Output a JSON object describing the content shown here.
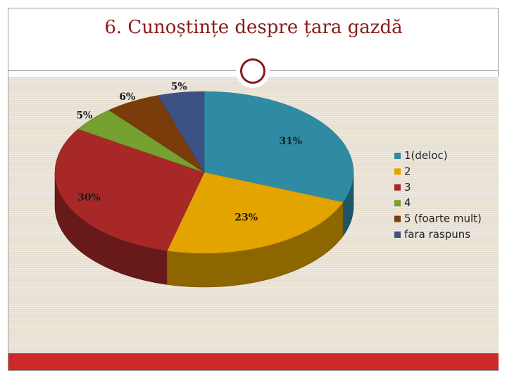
{
  "slide": {
    "title": "6. Cunoștințe despre țara gazdă",
    "colors": {
      "title": "#8b1a1a",
      "panel": "#e7dfd2",
      "footer": "#cc2a2a",
      "frame": "#9a9a9a"
    }
  },
  "chart_data": {
    "type": "pie",
    "style": "3d",
    "title": "",
    "labels": [
      "1(deloc)",
      "2",
      "3",
      "4",
      "5 (foarte mult)",
      "fara raspuns"
    ],
    "values": [
      31,
      23,
      30,
      5,
      6,
      5
    ],
    "data_labels": [
      "31%",
      "23%",
      "30%",
      "5%",
      "6%",
      "5%"
    ],
    "colors": [
      "#2e8ba3",
      "#e3a400",
      "#a82828",
      "#76a02f",
      "#7a3c0a",
      "#3c5284"
    ],
    "legend_position": "right"
  }
}
